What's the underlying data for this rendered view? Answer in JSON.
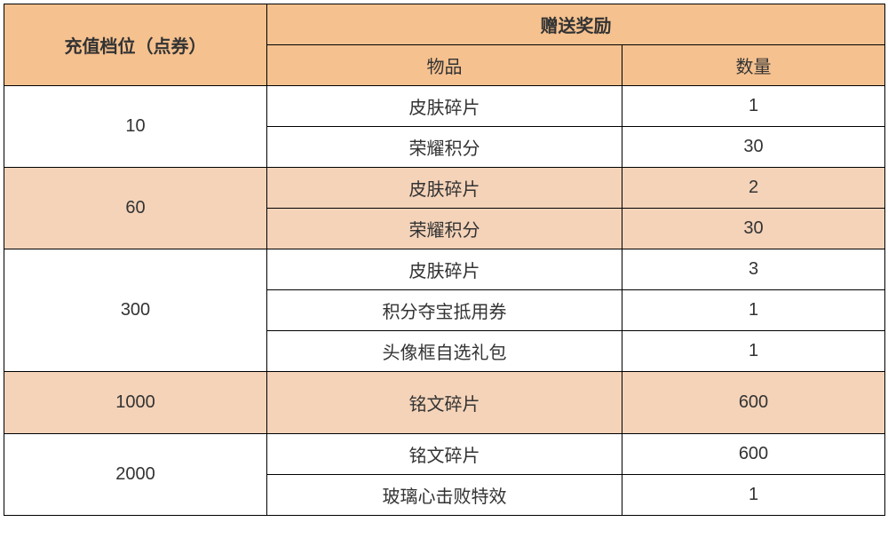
{
  "table": {
    "header": {
      "tier": "充值档位（点券）",
      "reward_group": "赠送奖励",
      "item": "物品",
      "qty": "数量"
    },
    "tiers": [
      {
        "tier": "10",
        "bg": "bg-white",
        "rewards": [
          {
            "item": "皮肤碎片",
            "qty": "1"
          },
          {
            "item": "荣耀积分",
            "qty": "30"
          }
        ]
      },
      {
        "tier": "60",
        "bg": "bg-peach",
        "rewards": [
          {
            "item": "皮肤碎片",
            "qty": "2"
          },
          {
            "item": "荣耀积分",
            "qty": "30"
          }
        ]
      },
      {
        "tier": "300",
        "bg": "bg-white",
        "rewards": [
          {
            "item": "皮肤碎片",
            "qty": "3"
          },
          {
            "item": "积分夺宝抵用券",
            "qty": "1"
          },
          {
            "item": "头像框自选礼包",
            "qty": "1"
          }
        ]
      },
      {
        "tier": "1000",
        "bg": "bg-peach",
        "tall": true,
        "rewards": [
          {
            "item": "铭文碎片",
            "qty": "600"
          }
        ]
      },
      {
        "tier": "2000",
        "bg": "bg-white",
        "rewards": [
          {
            "item": "铭文碎片",
            "qty": "600"
          },
          {
            "item": "玻璃心击败特效",
            "qty": "1"
          }
        ]
      }
    ],
    "colors": {
      "header_bg": "#f5c18f",
      "row_alt_bg": "#f4d3b9",
      "row_bg": "#ffffff",
      "border": "#000000",
      "text": "#333333"
    }
  }
}
